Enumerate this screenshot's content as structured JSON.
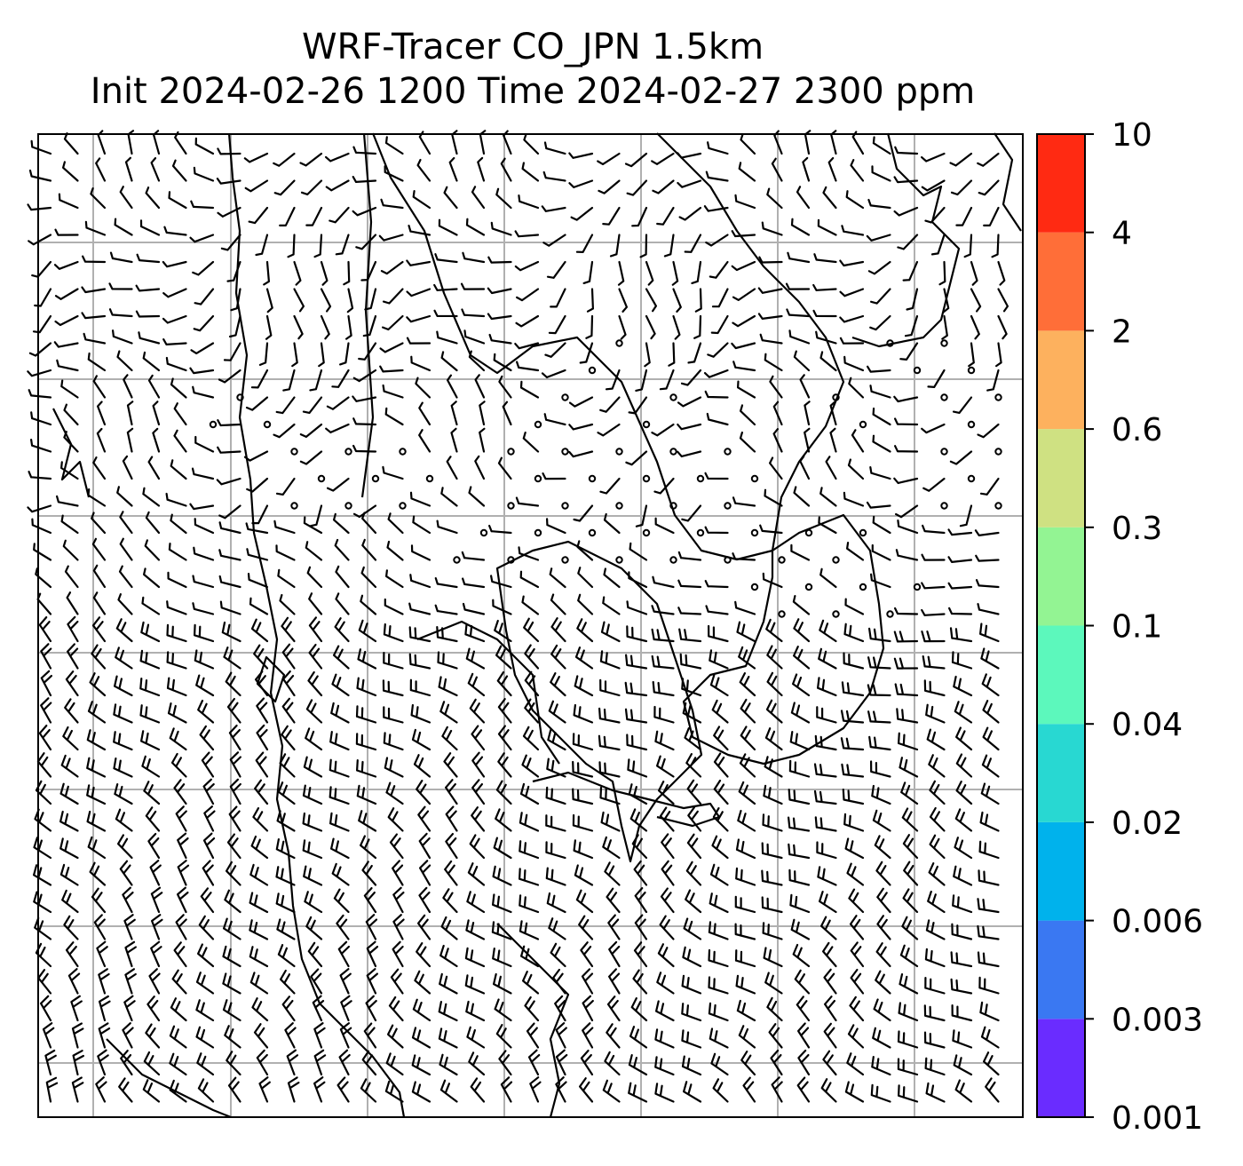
{
  "title": {
    "line1": "WRF-Tracer CO_JPN 1.5km",
    "line2": "Init 2024-02-26 1200 Time 2024-02-27 2300 ppm"
  },
  "colorbar": {
    "levels": [
      "0.001",
      "0.003",
      "0.006",
      "0.02",
      "0.04",
      "0.1",
      "0.3",
      "0.6",
      "2",
      "4",
      "10"
    ],
    "colors": [
      "#6a2cff",
      "#3a78f2",
      "#00b2ec",
      "#28d8d2",
      "#5cf8bc",
      "#93f493",
      "#cfe182",
      "#fdb15e",
      "#ff6e38",
      "#ff2a12"
    ]
  },
  "map": {
    "background": "#ffffff",
    "line_color": "#000000",
    "gridline_color": "#b0b0b0"
  }
}
